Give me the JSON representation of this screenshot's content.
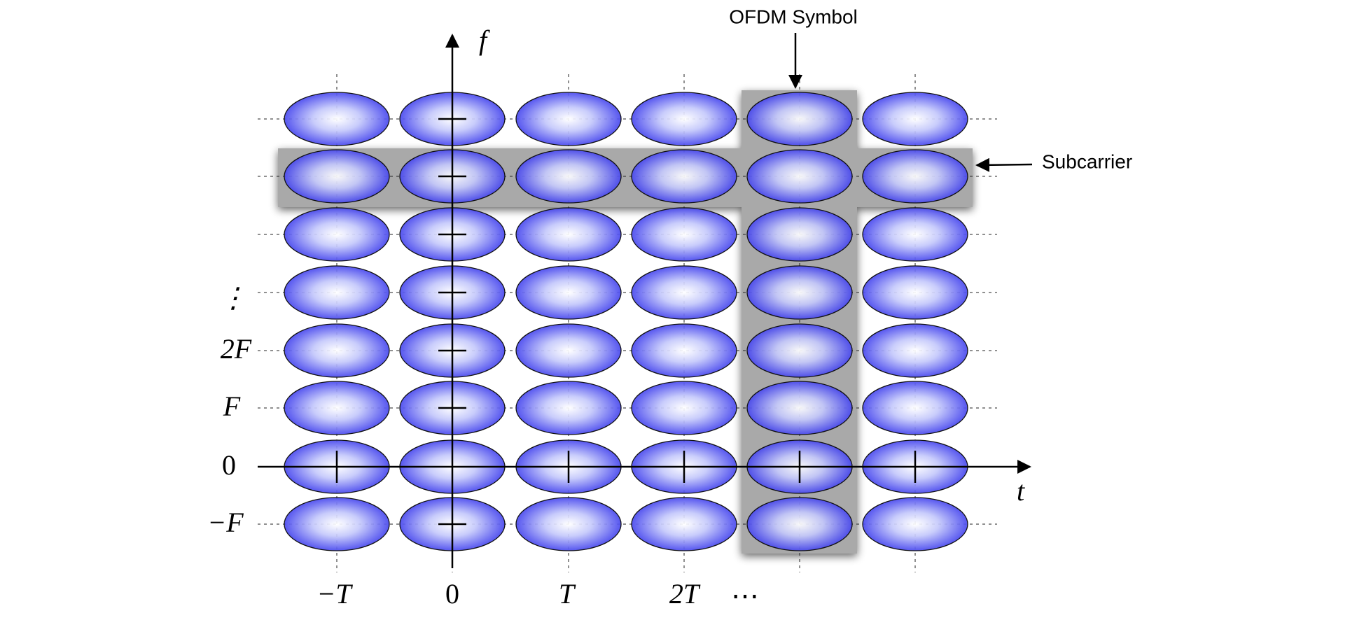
{
  "annotations": {
    "ofdm_symbol": "OFDM Symbol",
    "subcarrier": "Subcarrier"
  },
  "axes": {
    "x_label": "t",
    "y_label": "f"
  },
  "x_tick_labels": [
    "−T",
    "0",
    "T",
    "2T",
    "⋯"
  ],
  "y_tick_labels": [
    "⋮",
    "2F",
    "F",
    "0",
    "−F"
  ]
}
